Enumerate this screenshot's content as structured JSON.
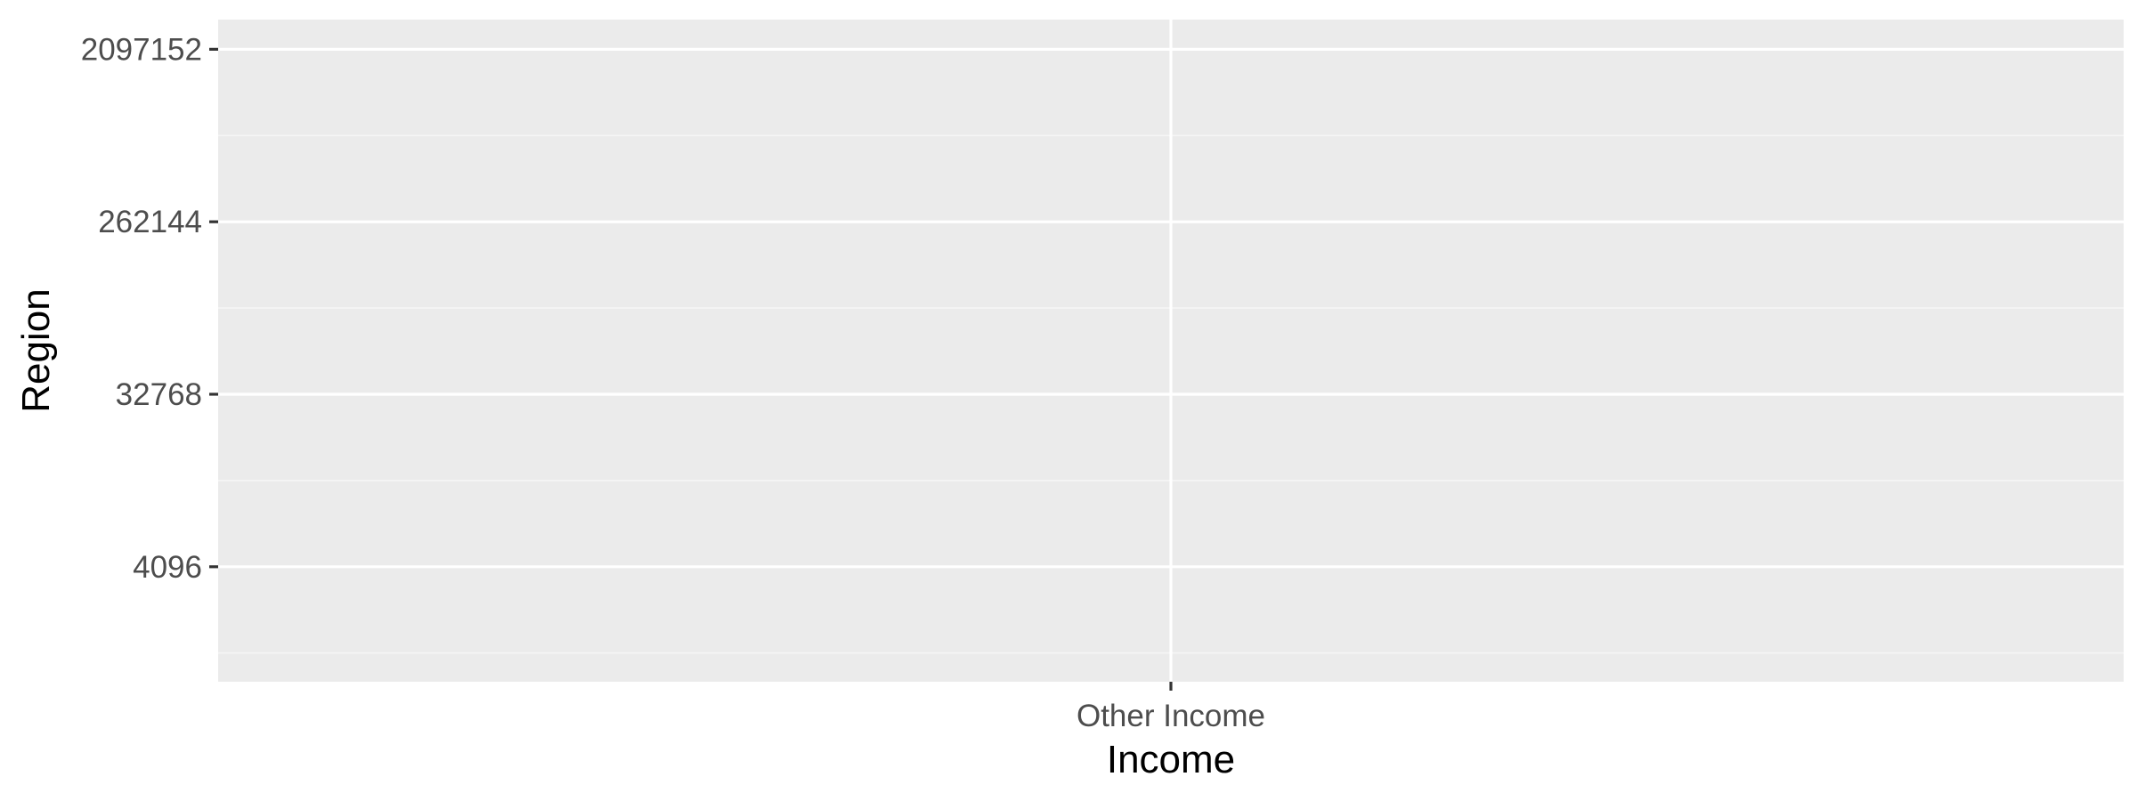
{
  "chart_data": {
    "type": "scatter",
    "title": "",
    "xlabel": "Income",
    "ylabel": "Region",
    "x_scale": "categorical",
    "y_scale": "log2",
    "categories": [
      "Other Income"
    ],
    "y_ticks": [
      4096,
      32768,
      262144,
      2097152
    ],
    "y_tick_labels": [
      "4096",
      "32768",
      "262144",
      "2097152"
    ],
    "ylim": [
      1024,
      3000000
    ],
    "grid": true,
    "legend": "none",
    "series": [],
    "colors": {
      "panel_background": "#ebebeb",
      "grid_major": "#ffffff",
      "grid_minor": "#f6f6f6",
      "tick_label": "#4d4d4d",
      "axis_title": "#000000",
      "tick_mark": "#333333"
    }
  }
}
